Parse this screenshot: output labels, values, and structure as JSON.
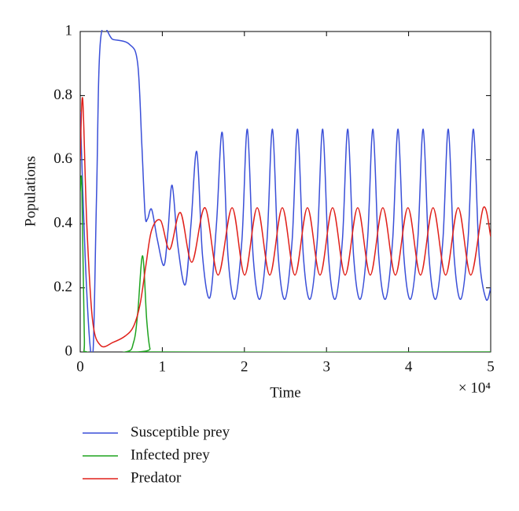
{
  "chart_data": {
    "type": "line",
    "xlabel": "Time",
    "ylabel": "Populations",
    "x_multiplier": "× 10⁴",
    "xlim": [
      0,
      50000
    ],
    "ylim": [
      0,
      1
    ],
    "xticks": [
      0,
      {
        "value": 10000,
        "label": "1"
      },
      {
        "value": 20000,
        "label": "2"
      },
      {
        "value": 30000,
        "label": "3"
      },
      {
        "value": 40000,
        "label": "4"
      },
      {
        "value": 50000,
        "label": "5"
      }
    ],
    "yticks": [
      0,
      0.2,
      0.4,
      0.6,
      0.8,
      1
    ],
    "legend": "below",
    "series": [
      {
        "name": "Susceptible prey",
        "color": "#3a4fd8",
        "x": [
          0,
          600,
          1200,
          1600,
          2000,
          2500,
          4000,
          6000,
          7000,
          7500,
          7900,
          8200,
          8700,
          9400,
          10200,
          10700,
          11200,
          11900,
          12800,
          13500,
          14200,
          14900,
          15800,
          16600,
          17300,
          18000,
          18830,
          19700,
          20360,
          21060,
          21890,
          22760,
          23420,
          24120,
          24950,
          25820,
          26480,
          27180,
          28010,
          28880,
          29540,
          30240,
          31070,
          31940,
          32600,
          33300,
          34130,
          35000,
          35660,
          36360,
          37190,
          38060,
          38720,
          39420,
          40250,
          41120,
          41780,
          42480,
          43310,
          44180,
          44840,
          45540,
          46370,
          47240,
          47900,
          48600,
          49430,
          50000
        ],
        "values": [
          0.75,
          0.3,
          0.02,
          0.02,
          0.5,
          0.98,
          0.975,
          0.96,
          0.9,
          0.65,
          0.43,
          0.415,
          0.445,
          0.35,
          0.27,
          0.38,
          0.52,
          0.33,
          0.21,
          0.4,
          0.625,
          0.3,
          0.17,
          0.4,
          0.685,
          0.3,
          0.165,
          0.35,
          0.695,
          0.3,
          0.165,
          0.35,
          0.695,
          0.3,
          0.165,
          0.35,
          0.695,
          0.3,
          0.165,
          0.35,
          0.695,
          0.3,
          0.165,
          0.35,
          0.695,
          0.3,
          0.165,
          0.35,
          0.695,
          0.3,
          0.165,
          0.35,
          0.695,
          0.3,
          0.165,
          0.35,
          0.695,
          0.3,
          0.165,
          0.35,
          0.695,
          0.3,
          0.165,
          0.35,
          0.695,
          0.3,
          0.165,
          0.2
        ]
      },
      {
        "name": "Infected prey",
        "color": "#1fa31f",
        "x": [
          0,
          200,
          500,
          800,
          5500,
          6500,
          7000,
          7600,
          8100,
          8500,
          9000,
          50000
        ],
        "values": [
          0.5,
          0.52,
          0.05,
          0,
          0,
          0.03,
          0.12,
          0.3,
          0.1,
          0.01,
          0,
          0
        ]
      },
      {
        "name": "Predator",
        "color": "#e0201a",
        "x": [
          0,
          300,
          800,
          1500,
          2500,
          4000,
          5500,
          6500,
          7300,
          8000,
          8700,
          9800,
          10900,
          12200,
          13600,
          15200,
          16800,
          18500,
          20030,
          21560,
          23090,
          24620,
          26150,
          27680,
          29210,
          30740,
          32270,
          33800,
          35330,
          36860,
          38390,
          39920,
          41450,
          42980,
          44510,
          46040,
          47570,
          49100,
          50000
        ],
        "values": [
          0.6,
          0.79,
          0.4,
          0.1,
          0.02,
          0.03,
          0.05,
          0.08,
          0.15,
          0.27,
          0.38,
          0.41,
          0.32,
          0.435,
          0.28,
          0.45,
          0.24,
          0.45,
          0.24,
          0.45,
          0.24,
          0.45,
          0.24,
          0.45,
          0.24,
          0.45,
          0.24,
          0.45,
          0.24,
          0.45,
          0.24,
          0.45,
          0.24,
          0.45,
          0.24,
          0.45,
          0.24,
          0.45,
          0.36
        ]
      }
    ]
  }
}
